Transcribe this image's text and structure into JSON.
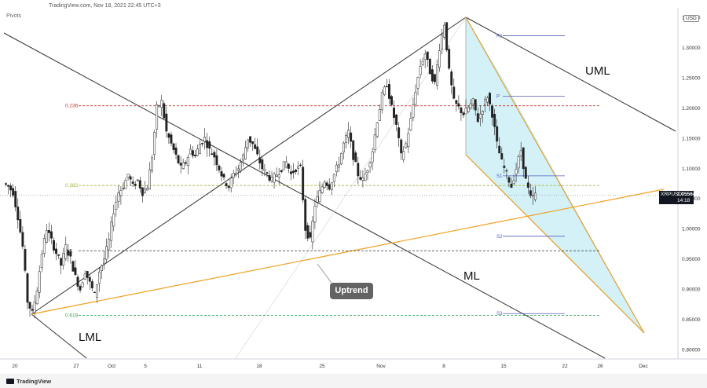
{
  "header": {
    "source_line": "TradingView.com, Nov 18, 2021 22:45 UTC+3",
    "pivots_label": "Pivots"
  },
  "footer": {
    "logo_text": "TradingView"
  },
  "axis": {
    "currency_label": "USD"
  },
  "price_badge": {
    "symbol": "XRPUSD",
    "value": "1.05564",
    "countdown": "14:18"
  },
  "annotations": {
    "uptrend": "Uptrend",
    "uml": "UML",
    "ml": "ML",
    "lml": "LML"
  },
  "fib_levels": [
    {
      "label": "0.236",
      "value": 1.2035,
      "color": "#c0392b"
    },
    {
      "label": "0.382",
      "value": 1.0715,
      "color": "#a8b23a"
    },
    {
      "label": "0.5",
      "value": 0.9635,
      "color": "#333333"
    },
    {
      "label": "0.618",
      "value": 0.8565,
      "color": "#3aa35a"
    }
  ],
  "pivot_levels": [
    {
      "label": "R1",
      "value": 1.3195
    },
    {
      "label": "P",
      "value": 1.2195
    },
    {
      "label": "S1",
      "value": 1.0875
    },
    {
      "label": "S2",
      "value": 0.9875
    },
    {
      "label": "S3",
      "value": 0.8595
    }
  ],
  "chart_data": {
    "type": "candlestick",
    "symbol": "XRPUSD",
    "timeframe": "4h",
    "y_ticks": [
      "1.35000",
      "1.30000",
      "1.25000",
      "1.20000",
      "1.15000",
      "1.10000",
      "1.05000",
      "1.00000",
      "0.95000",
      "0.90000",
      "0.85000",
      "0.80000"
    ],
    "y_range": [
      0.78,
      1.35
    ],
    "x_ticks": [
      "20",
      "27",
      "Oct",
      "5",
      "11",
      "18",
      "25",
      "Nov",
      "8",
      "15",
      "22",
      "26",
      "Dec"
    ],
    "close_path": [
      [
        1.075,
        1.07,
        1.06,
        1.02,
        0.97,
        0.88,
        0.86,
        0.9,
        0.96,
        1.0,
        0.98,
        0.96,
        0.94,
        0.97,
        0.95,
        0.92,
        0.9,
        0.93,
        0.91,
        0.89,
        0.93,
        0.95,
        0.98,
        1.03,
        1.06,
        1.07,
        1.09,
        1.07,
        1.08,
        1.06,
        1.07,
        1.12,
        1.2,
        1.21,
        1.16,
        1.14,
        1.12,
        1.1,
        1.11,
        1.13,
        1.12,
        1.14,
        1.15,
        1.13,
        1.12,
        1.1,
        1.08,
        1.07,
        1.09,
        1.1,
        1.12,
        1.15,
        1.14,
        1.12,
        1.1,
        1.09,
        1.08,
        1.09,
        1.1,
        1.11,
        1.09,
        1.1,
        1.1,
        1.0,
        0.98,
        1.04,
        1.06,
        1.08,
        1.07,
        1.09,
        1.11,
        1.14,
        1.16,
        1.12,
        1.09,
        1.08,
        1.1,
        1.13,
        1.18,
        1.22,
        1.24,
        1.2,
        1.17,
        1.12,
        1.14,
        1.18,
        1.23,
        1.27,
        1.29,
        1.26,
        1.24,
        1.3,
        1.34,
        1.26,
        1.21,
        1.2,
        1.19,
        1.2,
        1.21,
        1.18,
        1.2,
        1.22,
        1.19,
        1.14,
        1.11,
        1.09,
        1.07,
        1.1,
        1.13,
        1.08,
        1.05,
        1.056
      ]
    ],
    "pitchfork": {
      "lines": [
        "UML",
        "ML",
        "LML"
      ]
    },
    "channel": {
      "fill": "#c8eef5",
      "line_color": "#f0a020"
    },
    "uptrend_line_color": "#f0a020",
    "current_price": 1.05564
  }
}
